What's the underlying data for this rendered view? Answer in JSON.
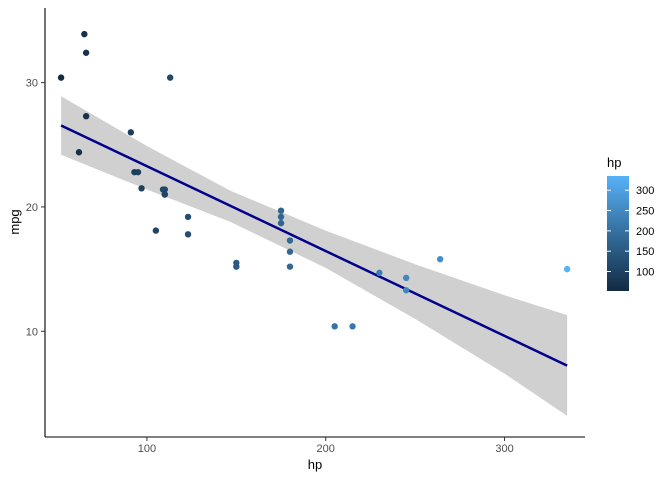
{
  "chart_data": {
    "type": "scatter",
    "xlabel": "hp",
    "ylabel": "mpg",
    "xlim": [
      43,
      345
    ],
    "ylim": [
      1.5,
      36
    ],
    "x_ticks": [
      100,
      200,
      300
    ],
    "x_tick_labels": [
      "100",
      "200",
      "300"
    ],
    "y_ticks": [
      10,
      20,
      30
    ],
    "y_tick_labels": [
      "10",
      "20",
      "30"
    ],
    "grid": false,
    "points": [
      {
        "x": 110,
        "y": 21.0
      },
      {
        "x": 110,
        "y": 21.0
      },
      {
        "x": 93,
        "y": 22.8
      },
      {
        "x": 110,
        "y": 21.4
      },
      {
        "x": 175,
        "y": 18.7
      },
      {
        "x": 105,
        "y": 18.1
      },
      {
        "x": 245,
        "y": 14.3
      },
      {
        "x": 62,
        "y": 24.4
      },
      {
        "x": 95,
        "y": 22.8
      },
      {
        "x": 123,
        "y": 19.2
      },
      {
        "x": 123,
        "y": 17.8
      },
      {
        "x": 180,
        "y": 16.4
      },
      {
        "x": 180,
        "y": 17.3
      },
      {
        "x": 180,
        "y": 15.2
      },
      {
        "x": 205,
        "y": 10.4
      },
      {
        "x": 215,
        "y": 10.4
      },
      {
        "x": 230,
        "y": 14.7
      },
      {
        "x": 66,
        "y": 32.4
      },
      {
        "x": 52,
        "y": 30.4
      },
      {
        "x": 65,
        "y": 33.9
      },
      {
        "x": 97,
        "y": 21.5
      },
      {
        "x": 150,
        "y": 15.5
      },
      {
        "x": 150,
        "y": 15.2
      },
      {
        "x": 245,
        "y": 13.3
      },
      {
        "x": 175,
        "y": 19.2
      },
      {
        "x": 66,
        "y": 27.3
      },
      {
        "x": 91,
        "y": 26.0
      },
      {
        "x": 113,
        "y": 30.4
      },
      {
        "x": 264,
        "y": 15.8
      },
      {
        "x": 175,
        "y": 19.7
      },
      {
        "x": 335,
        "y": 15.0
      },
      {
        "x": 109,
        "y": 21.4
      }
    ],
    "regression": {
      "x_range": [
        52,
        335
      ],
      "intercept": 30.09886,
      "slope": -0.06823,
      "se_band": [
        {
          "x": 52,
          "lower": 24.2,
          "upper": 28.9
        },
        {
          "x": 100,
          "lower": 21.4,
          "upper": 24.9
        },
        {
          "x": 146.7,
          "lower": 18.8,
          "upper": 21.3
        },
        {
          "x": 200,
          "lower": 15.1,
          "upper": 18.1
        },
        {
          "x": 250,
          "lower": 11.0,
          "upper": 15.4
        },
        {
          "x": 300,
          "lower": 6.6,
          "upper": 12.9
        },
        {
          "x": 335,
          "lower": 3.2,
          "upper": 11.3
        }
      ],
      "line_color": "#00008b",
      "band_color": "#d0d0d0"
    },
    "color_scale": {
      "variable": "hp",
      "low_color": "#132b43",
      "high_color": "#56b1f7",
      "domain": [
        52,
        335
      ],
      "legend_title": "hp",
      "legend_breaks": [
        100,
        150,
        200,
        250,
        300
      ],
      "legend_labels": [
        "100",
        "150",
        "200",
        "250",
        "300"
      ],
      "legend_position": "right"
    }
  }
}
